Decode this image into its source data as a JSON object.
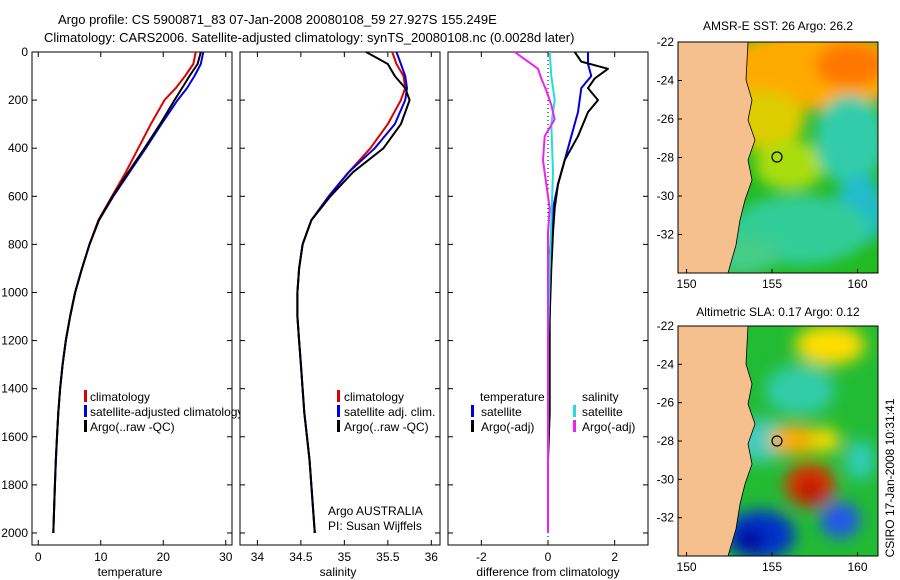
{
  "header": {
    "line1": "Argo profile: CS 5900871_83 07-Jan-2008 20080108_59 27.927S 155.249E",
    "line2": "Climatology: CARS2006. Satellite-adjusted climatology: synTS_20080108.nc (0.0028d later)"
  },
  "colors": {
    "climatology": "#dd0000",
    "satellite": "#0000dd",
    "argo": "#000000",
    "sat_salinity": "#22dddd",
    "argo_salinity": "#ee22ee",
    "land": "#f5c08e"
  },
  "chart_data": [
    {
      "type": "line",
      "panel": "temperature",
      "xlabel": "temperature",
      "ylabel": "",
      "xlim": [
        -1,
        31
      ],
      "ylim": [
        2050,
        0
      ],
      "y_reversed": true,
      "xticks": [
        0,
        10,
        20,
        30
      ],
      "yticks": [
        0,
        200,
        400,
        600,
        800,
        1000,
        1200,
        1400,
        1600,
        1800,
        2000
      ],
      "legend": [
        "climatology",
        "satellite-adjusted climatology",
        "Argo(..raw -QC)"
      ],
      "series": [
        {
          "name": "climatology",
          "color": "#dd0000",
          "x": [
            25.2,
            24.8,
            23.5,
            22.0,
            20.2,
            18.0,
            16.0,
            14.0,
            11.8,
            9.6,
            8.2,
            7.0,
            5.9,
            5.1,
            4.4,
            3.9,
            3.5,
            3.2,
            3.0,
            2.8,
            2.6,
            2.4
          ],
          "y": [
            0,
            50,
            100,
            150,
            200,
            300,
            400,
            500,
            600,
            700,
            800,
            900,
            1000,
            1100,
            1200,
            1300,
            1400,
            1500,
            1600,
            1700,
            1850,
            2000
          ]
        },
        {
          "name": "satellite-adjusted climatology",
          "color": "#0000dd",
          "x": [
            26.4,
            26.0,
            25.0,
            23.8,
            22.3,
            19.7,
            17.2,
            14.6,
            12.0,
            9.7,
            8.2,
            7.0,
            5.9,
            5.1,
            4.4,
            3.9,
            3.5,
            3.2,
            3.0,
            2.8,
            2.6,
            2.4
          ],
          "y": [
            0,
            50,
            100,
            150,
            200,
            300,
            400,
            500,
            600,
            700,
            800,
            900,
            1000,
            1100,
            1200,
            1300,
            1400,
            1500,
            1600,
            1700,
            1850,
            2000
          ]
        },
        {
          "name": "Argo(..raw -QC)",
          "color": "#000000",
          "x": [
            26.0,
            25.5,
            24.2,
            23.0,
            21.8,
            19.5,
            17.0,
            14.4,
            11.9,
            9.7,
            8.2,
            7.0,
            5.9,
            5.1,
            4.4,
            3.9,
            3.5,
            3.2,
            3.0,
            2.8,
            2.6,
            2.4
          ],
          "y": [
            0,
            50,
            100,
            150,
            200,
            300,
            400,
            500,
            600,
            700,
            800,
            900,
            1000,
            1100,
            1200,
            1300,
            1400,
            1500,
            1600,
            1700,
            1850,
            2000
          ]
        }
      ]
    },
    {
      "type": "line",
      "panel": "salinity",
      "xlabel": "salinity",
      "ylabel": "",
      "xlim": [
        33.8,
        36.1
      ],
      "ylim": [
        2050,
        0
      ],
      "y_reversed": true,
      "xticks": [
        34,
        34.5,
        35,
        35.5,
        36
      ],
      "legend": [
        "climatology",
        "satellite adj. clim.",
        "Argo(..raw -QC)"
      ],
      "annotation": [
        "Argo AUSTRALIA",
        "PI: Susan Wijffels"
      ],
      "series": [
        {
          "name": "climatology",
          "color": "#dd0000",
          "x": [
            35.55,
            35.6,
            35.68,
            35.7,
            35.65,
            35.5,
            35.3,
            35.05,
            34.82,
            34.62,
            34.52,
            34.48,
            34.46,
            34.46,
            34.48,
            34.5,
            34.52,
            34.54,
            34.57,
            34.6,
            34.63,
            34.66
          ],
          "y": [
            0,
            50,
            100,
            150,
            200,
            300,
            400,
            500,
            600,
            700,
            800,
            900,
            1000,
            1100,
            1200,
            1300,
            1400,
            1500,
            1600,
            1700,
            1850,
            2000
          ]
        },
        {
          "name": "satellite adj. clim.",
          "color": "#0000dd",
          "x": [
            35.6,
            35.65,
            35.7,
            35.72,
            35.7,
            35.58,
            35.35,
            35.05,
            34.82,
            34.62,
            34.52,
            34.48,
            34.46,
            34.46,
            34.48,
            34.5,
            34.52,
            34.54,
            34.57,
            34.6,
            34.63,
            34.66
          ],
          "y": [
            0,
            50,
            100,
            150,
            200,
            300,
            400,
            500,
            600,
            700,
            800,
            900,
            1000,
            1100,
            1200,
            1300,
            1400,
            1500,
            1600,
            1700,
            1850,
            2000
          ]
        },
        {
          "name": "Argo(..raw -QC)",
          "color": "#000000",
          "x": [
            35.25,
            35.5,
            35.58,
            35.7,
            35.75,
            35.65,
            35.45,
            35.1,
            34.84,
            34.62,
            34.52,
            34.48,
            34.46,
            34.46,
            34.48,
            34.5,
            34.52,
            34.54,
            34.57,
            34.6,
            34.63,
            34.66
          ],
          "y": [
            0,
            50,
            100,
            150,
            200,
            300,
            400,
            500,
            600,
            700,
            800,
            900,
            1000,
            1100,
            1200,
            1300,
            1400,
            1500,
            1600,
            1700,
            1850,
            2000
          ]
        }
      ]
    },
    {
      "type": "line",
      "panel": "difference",
      "xlabel": "difference from climatology",
      "ylabel": "",
      "xlim": [
        -3,
        3
      ],
      "ylim": [
        2050,
        0
      ],
      "y_reversed": true,
      "xticks": [
        -2,
        0,
        2
      ],
      "legend_groups": {
        "temperature": [
          "satellite",
          "Argo(-adj)"
        ],
        "salinity": [
          "satellite",
          "Argo(-adj)"
        ]
      },
      "series": [
        {
          "name": "satellite",
          "group": "temperature",
          "color": "#0000dd",
          "x": [
            1.2,
            1.2,
            1.3,
            1.0,
            0.9,
            0.7,
            0.5,
            0.3,
            0.15,
            0.1,
            0.05,
            0.05,
            0.05,
            0.0,
            0.0,
            0.0,
            0.0,
            0.0,
            0.0,
            0.0,
            0.0
          ],
          "y": [
            0,
            50,
            100,
            150,
            250,
            350,
            450,
            550,
            650,
            750,
            850,
            950,
            1100,
            1250,
            1400,
            1550,
            1700,
            1800,
            1900,
            1950,
            2000
          ]
        },
        {
          "name": "Argo(-adj)",
          "group": "temperature",
          "color": "#000000",
          "x": [
            0.8,
            1.0,
            1.8,
            1.4,
            1.2,
            1.5,
            1.2,
            0.9,
            0.5,
            0.3,
            0.2,
            0.15,
            0.1,
            0.05,
            0.05,
            0.05,
            0.0,
            0.0,
            0.0,
            0.0
          ],
          "y": [
            0,
            40,
            70,
            110,
            150,
            200,
            250,
            350,
            450,
            550,
            650,
            750,
            900,
            1100,
            1300,
            1500,
            1700,
            1850,
            1950,
            2000
          ]
        },
        {
          "name": "satellite",
          "group": "salinity",
          "color": "#22dddd",
          "x": [
            0.05,
            0.1,
            0.2,
            0.1,
            0.15,
            0.1,
            0.05,
            0.0,
            0.0,
            0.0,
            0.0
          ],
          "y": [
            0,
            100,
            200,
            300,
            500,
            700,
            900,
            1200,
            1500,
            1800,
            2000
          ]
        },
        {
          "name": "Argo(-adj)",
          "group": "salinity",
          "color": "#ee22ee",
          "x": [
            -1.0,
            -0.6,
            -0.3,
            -0.2,
            -0.05,
            0.1,
            0.2,
            -0.1,
            -0.15,
            -0.05,
            0.05,
            0.0,
            0.0,
            0.0,
            0.0,
            0.0
          ],
          "y": [
            0,
            40,
            70,
            110,
            160,
            220,
            280,
            350,
            450,
            550,
            650,
            750,
            900,
            1200,
            1600,
            2000
          ]
        }
      ]
    },
    {
      "type": "heatmap",
      "panel": "sst-map",
      "title": "AMSR-E SST: 26 Argo: 26.2",
      "xlim": [
        149.5,
        161.2
      ],
      "ylim": [
        -34,
        -22
      ],
      "xticks": [
        150,
        155,
        160
      ],
      "yticks": [
        -22,
        -24,
        -26,
        -28,
        -30,
        -32
      ],
      "marker": {
        "lon": 155.249,
        "lat": -27.927
      }
    },
    {
      "type": "heatmap",
      "panel": "sla-map",
      "title": "Altimetric SLA: 0.17 Argo: 0.12",
      "xlim": [
        149.5,
        161.2
      ],
      "ylim": [
        -34,
        -22
      ],
      "xticks": [
        150,
        155,
        160
      ],
      "yticks": [
        -22,
        -24,
        -26,
        -28,
        -30,
        -32
      ],
      "marker": {
        "lon": 155.249,
        "lat": -27.927
      }
    }
  ],
  "stamp": "CSIRO 17-Jan-2008 10:31:41"
}
